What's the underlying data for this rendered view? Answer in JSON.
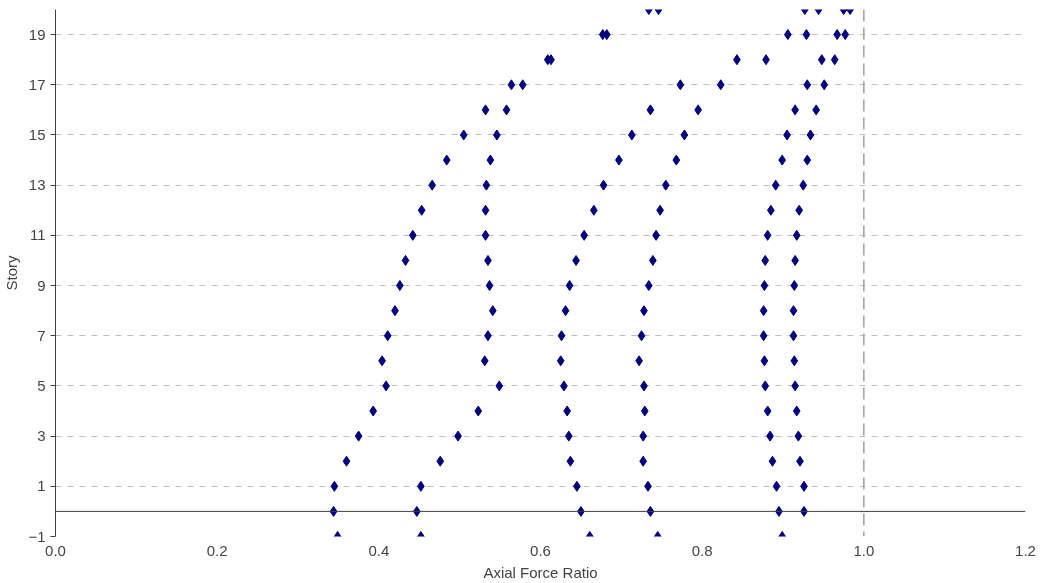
{
  "chart_data": {
    "type": "scatter",
    "xlabel": "Axial Force Ratio",
    "ylabel": "Story",
    "x": [
      -1,
      0,
      1,
      2,
      3,
      4,
      5,
      6,
      7,
      8,
      9,
      10,
      11,
      12,
      13,
      14,
      15,
      16,
      17,
      18,
      19,
      20
    ],
    "series": [
      {
        "color": "#000080",
        "values": [
          0.349,
          0.344,
          0.345,
          0.36,
          0.375,
          0.393,
          0.409,
          0.404,
          0.411,
          0.42,
          0.426,
          0.433,
          0.442,
          0.453,
          0.466,
          0.484,
          0.505,
          0.532,
          0.564,
          0.609,
          0.677,
          0.734
        ]
      },
      {
        "color": "#000080",
        "values": [
          0.452,
          0.447,
          0.452,
          0.476,
          0.498,
          0.523,
          0.549,
          0.531,
          0.535,
          0.541,
          0.537,
          0.535,
          0.532,
          0.532,
          0.533,
          0.538,
          0.546,
          0.558,
          0.578,
          0.613,
          0.682,
          0.746
        ]
      },
      {
        "color": "#000080",
        "values": [
          0.661,
          0.65,
          0.645,
          0.637,
          0.635,
          0.633,
          0.629,
          0.625,
          0.626,
          0.631,
          0.636,
          0.644,
          0.654,
          0.666,
          0.678,
          0.697,
          0.713,
          0.736,
          0.773,
          0.843,
          0.906,
          0.927
        ]
      },
      {
        "color": "#000080",
        "values": [
          0.745,
          0.736,
          0.733,
          0.727,
          0.727,
          0.729,
          0.728,
          0.722,
          0.725,
          0.728,
          0.734,
          0.739,
          0.743,
          0.748,
          0.755,
          0.768,
          0.778,
          0.795,
          0.823,
          0.879,
          0.929,
          0.944
        ]
      },
      {
        "color": "#000080",
        "values": [
          0.899,
          0.895,
          0.892,
          0.887,
          0.884,
          0.881,
          0.878,
          0.877,
          0.876,
          0.876,
          0.877,
          0.878,
          0.881,
          0.885,
          0.891,
          0.899,
          0.905,
          0.915,
          0.93,
          0.948,
          0.967,
          0.975
        ]
      },
      {
        "color": "#000080",
        "values": [
          null,
          0.926,
          0.926,
          0.921,
          0.919,
          0.917,
          0.915,
          0.914,
          0.913,
          0.913,
          0.914,
          0.915,
          0.917,
          0.92,
          0.925,
          0.93,
          0.934,
          0.941,
          0.951,
          0.964,
          0.977,
          0.983
        ]
      }
    ],
    "orientation": "horizontal",
    "xlim": [
      0,
      1.2
    ],
    "xticks": [
      {
        "value": 0,
        "label": "0.0"
      },
      0.2,
      0.4,
      0.6,
      0.8,
      {
        "value": 1,
        "label": "1.0"
      },
      1.2
    ],
    "ylim": [
      -1,
      20
    ],
    "yticks": [
      -1,
      1,
      3,
      5,
      7,
      9,
      11,
      13,
      15,
      17,
      19
    ],
    "ref_lines": [
      {
        "axis": "x",
        "value": 1,
        "color": "#a0a0a0",
        "line_style": "dashed"
      }
    ],
    "grid": "y",
    "marker": "diamond"
  }
}
